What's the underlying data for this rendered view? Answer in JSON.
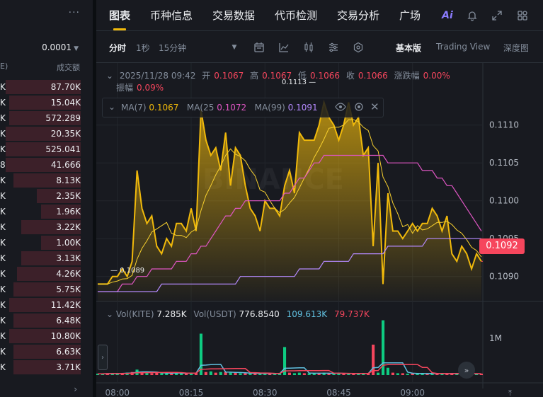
{
  "orderbook": {
    "precision": "0.0001",
    "header_left": "E)",
    "header_right": "成交额",
    "rows": [
      {
        "left": "K",
        "right": "87.70K",
        "bar": 0.95
      },
      {
        "left": "K",
        "right": "15.04K",
        "bar": 0.9
      },
      {
        "left": "K",
        "right": "572.289",
        "bar": 0.9
      },
      {
        "left": "K",
        "right": "20.35K",
        "bar": 0.95
      },
      {
        "left": "K",
        "right": "525.041",
        "bar": 0.95
      },
      {
        "left": "8",
        "right": "41.666",
        "bar": 0.95
      },
      {
        "left": "K",
        "right": "8.13K",
        "bar": 0.85
      },
      {
        "left": "K",
        "right": "2.35K",
        "bar": 0.55
      },
      {
        "left": "K",
        "right": "1.96K",
        "bar": 0.5
      },
      {
        "left": "K",
        "right": "3.22K",
        "bar": 0.75
      },
      {
        "left": "K",
        "right": "1.00K",
        "bar": 0.5
      },
      {
        "left": "K",
        "right": "3.13K",
        "bar": 0.75
      },
      {
        "left": "K",
        "right": "4.26K",
        "bar": 0.8
      },
      {
        "left": "K",
        "right": "5.75K",
        "bar": 0.85
      },
      {
        "left": "K",
        "right": "11.42K",
        "bar": 0.9
      },
      {
        "left": "K",
        "right": "6.48K",
        "bar": 0.85
      },
      {
        "left": "K",
        "right": "10.80K",
        "bar": 0.9
      },
      {
        "left": "K",
        "right": "6.63K",
        "bar": 0.85
      },
      {
        "left": "K",
        "right": "3.71K",
        "bar": 0.85
      }
    ]
  },
  "tabs": [
    "图表",
    "币种信息",
    "交易数据",
    "代币检测",
    "交易分析",
    "广场"
  ],
  "tab_icons": [
    "ai-icon",
    "bell-icon",
    "expand-icon",
    "grid-icon"
  ],
  "ai_label": "Ai",
  "toolbar": {
    "time_options": [
      "分时",
      "1秒",
      "15分钟"
    ],
    "views": [
      "基本版",
      "Trading View",
      "深度图"
    ]
  },
  "colors": {
    "accent": "#f0b90b",
    "up": "#0ecb81",
    "down": "#f6465d",
    "ma7": "#f0b90b",
    "ma25": "#e056c4",
    "ma99": "#b58aff",
    "vol_ma1": "#61c0e0",
    "vol_ma2": "#f6465d"
  },
  "ohlc": {
    "date": "2025/11/28 09:42",
    "open_label": "开",
    "open": "0.1067",
    "high_label": "高",
    "high": "0.1067",
    "low_label": "低",
    "low": "0.1066",
    "close_label": "收",
    "close": "0.1066",
    "change_label": "涨跌幅",
    "change": "0.00%",
    "amp_label": "振幅",
    "amp": "0.09%"
  },
  "ma": {
    "ma7_label": "MA(7)",
    "ma7": "0.1067",
    "ma25_label": "MA(25",
    "ma25": "0.1072",
    "ma99_label": "MA(99)",
    "ma99": "0.1091"
  },
  "last_price": "0.1092",
  "high_marker": "0.1113",
  "low_marker": "0.1089",
  "volume": {
    "vol_label": "Vol(KITE)",
    "vol": "7.285K",
    "vol_usdt_label": "Vol(USDT)",
    "vol_usdt": "776.8540",
    "ma1": "109.613K",
    "ma2": "79.737K",
    "axis_label": "1M"
  },
  "chart_data": {
    "type": "area",
    "y_ticks": [
      "0.1110",
      "0.1105",
      "0.1100",
      "0.1095",
      "0.1090"
    ],
    "ylim": [
      0.10867,
      0.11182
    ],
    "x_ticks": [
      "08:00",
      "08:15",
      "08:30",
      "08:45",
      "09:00"
    ],
    "price": [
      0.1089,
      0.1089,
      0.1089,
      0.109,
      0.109,
      0.1091,
      0.109,
      0.1092,
      0.1104,
      0.1099,
      0.1097,
      0.1098,
      0.1094,
      0.1093,
      0.1095,
      0.1094,
      0.1097,
      0.1097,
      0.1096,
      0.1099,
      0.1096,
      0.1112,
      0.1108,
      0.1106,
      0.1107,
      0.1104,
      0.1109,
      0.1102,
      0.1107,
      0.1106,
      0.1102,
      0.1099,
      0.1098,
      0.1096,
      0.11,
      0.1099,
      0.1099,
      0.1098,
      0.1102,
      0.1104,
      0.1101,
      0.1109,
      0.1108,
      0.1108,
      0.1108,
      0.111,
      0.1113,
      0.1111,
      0.111,
      0.1108,
      0.111,
      0.1113,
      0.111,
      0.1111,
      0.1106,
      0.1107,
      0.1094,
      0.1105,
      0.1089,
      0.1101,
      0.1096,
      0.1096,
      0.1095,
      0.1096,
      0.1097,
      0.1096,
      0.1097,
      0.1097,
      0.1099,
      0.1098,
      0.1096,
      0.1098,
      0.1093,
      0.1092,
      0.1094,
      0.1093,
      0.1091,
      0.1093,
      0.1092
    ],
    "ma25": [
      0.1088,
      0.1088,
      0.1088,
      0.1088,
      0.1088,
      0.1089,
      0.1089,
      0.1089,
      0.109,
      0.109,
      0.109,
      0.1091,
      0.1091,
      0.1091,
      0.1091,
      0.1091,
      0.1092,
      0.1092,
      0.1092,
      0.1093,
      0.1093,
      0.1094,
      0.1094,
      0.1095,
      0.1096,
      0.1097,
      0.1098,
      0.1098,
      0.1099,
      0.1099,
      0.11,
      0.11,
      0.11,
      0.11,
      0.11,
      0.11,
      0.11,
      0.11,
      0.1101,
      0.1101,
      0.1102,
      0.1103,
      0.1103,
      0.1104,
      0.1105,
      0.1105,
      0.1106,
      0.1106,
      0.1106,
      0.1106,
      0.1106,
      0.1106,
      0.1106,
      0.1106,
      0.1106,
      0.1106,
      0.1106,
      0.1106,
      0.1106,
      0.1105,
      0.1105,
      0.1105,
      0.1105,
      0.1105,
      0.1105,
      0.1105,
      0.1104,
      0.1104,
      0.1104,
      0.1103,
      0.1103,
      0.1102,
      0.1102,
      0.1101,
      0.11,
      0.1099,
      0.1098,
      0.1097,
      0.1096
    ],
    "ma99": [
      0.1088,
      0.1088,
      0.1088,
      0.1088,
      0.1088,
      0.1088,
      0.1088,
      0.1088,
      0.1088,
      0.1088,
      0.1088,
      0.1088,
      0.1088,
      0.1089,
      0.1089,
      0.1089,
      0.1089,
      0.1089,
      0.1089,
      0.1089,
      0.1089,
      0.1089,
      0.1089,
      0.1089,
      0.1089,
      0.1089,
      0.1089,
      0.1089,
      0.1089,
      0.109,
      0.109,
      0.109,
      0.109,
      0.109,
      0.109,
      0.109,
      0.109,
      0.109,
      0.109,
      0.109,
      0.109,
      0.1091,
      0.1091,
      0.1091,
      0.1091,
      0.1091,
      0.1092,
      0.1092,
      0.1092,
      0.1092,
      0.1092,
      0.1092,
      0.1093,
      0.1093,
      0.1093,
      0.1093,
      0.1093,
      0.1093,
      0.1093,
      0.1094,
      0.1094,
      0.1094,
      0.1094,
      0.1094,
      0.1094,
      0.1094,
      0.1094,
      0.1095,
      0.1095,
      0.1095,
      0.1095,
      0.1095,
      0.1095,
      0.1095,
      0.1095,
      0.1095,
      0.1095,
      0.1095,
      0.1095
    ],
    "volume": [
      {
        "v": 0.02,
        "up": true
      },
      {
        "v": 0.02,
        "up": true
      },
      {
        "v": 0.03,
        "up": false
      },
      {
        "v": 0.03,
        "up": true
      },
      {
        "v": 0.02,
        "up": true
      },
      {
        "v": 0.03,
        "up": false
      },
      {
        "v": 0.04,
        "up": true
      },
      {
        "v": 0.05,
        "up": false
      },
      {
        "v": 0.09,
        "up": true
      },
      {
        "v": 0.05,
        "up": false
      },
      {
        "v": 0.04,
        "up": true
      },
      {
        "v": 0.03,
        "up": false
      },
      {
        "v": 0.04,
        "up": false
      },
      {
        "v": 0.03,
        "up": true
      },
      {
        "v": 0.03,
        "up": true
      },
      {
        "v": 0.03,
        "up": false
      },
      {
        "v": 0.04,
        "up": true
      },
      {
        "v": 0.03,
        "up": true
      },
      {
        "v": 0.02,
        "up": false
      },
      {
        "v": 0.03,
        "up": true
      },
      {
        "v": 0.04,
        "up": false
      },
      {
        "v": 0.68,
        "up": true
      },
      {
        "v": 0.05,
        "up": false
      },
      {
        "v": 0.06,
        "up": true
      },
      {
        "v": 0.04,
        "up": false
      },
      {
        "v": 0.05,
        "up": true
      },
      {
        "v": 0.05,
        "up": false
      },
      {
        "v": 0.04,
        "up": true
      },
      {
        "v": 0.04,
        "up": false
      },
      {
        "v": 0.03,
        "up": true
      },
      {
        "v": 0.03,
        "up": false
      },
      {
        "v": 0.02,
        "up": true
      },
      {
        "v": 0.03,
        "up": false
      },
      {
        "v": 0.02,
        "up": true
      },
      {
        "v": 0.03,
        "up": true
      },
      {
        "v": 0.02,
        "up": false
      },
      {
        "v": 0.02,
        "up": true
      },
      {
        "v": 0.03,
        "up": true
      },
      {
        "v": 0.46,
        "up": true
      },
      {
        "v": 0.04,
        "up": false
      },
      {
        "v": 0.03,
        "up": true
      },
      {
        "v": 0.04,
        "up": true
      },
      {
        "v": 0.03,
        "up": false
      },
      {
        "v": 0.03,
        "up": true
      },
      {
        "v": 0.02,
        "up": true
      },
      {
        "v": 0.03,
        "up": false
      },
      {
        "v": 0.04,
        "up": true
      },
      {
        "v": 0.03,
        "up": false
      },
      {
        "v": 0.02,
        "up": true
      },
      {
        "v": 0.03,
        "up": true
      },
      {
        "v": 0.02,
        "up": false
      },
      {
        "v": 0.03,
        "up": true
      },
      {
        "v": 0.02,
        "up": false
      },
      {
        "v": 0.03,
        "up": true
      },
      {
        "v": 0.02,
        "up": true
      },
      {
        "v": 0.03,
        "up": false
      },
      {
        "v": 0.5,
        "up": false
      },
      {
        "v": 0.04,
        "up": true
      },
      {
        "v": 0.9,
        "up": true
      },
      {
        "v": 0.12,
        "up": true
      },
      {
        "v": 0.04,
        "up": false
      },
      {
        "v": 0.03,
        "up": true
      },
      {
        "v": 0.03,
        "up": false
      },
      {
        "v": 0.02,
        "up": true
      },
      {
        "v": 0.03,
        "up": false
      },
      {
        "v": 0.02,
        "up": true
      },
      {
        "v": 0.03,
        "up": true
      },
      {
        "v": 0.02,
        "up": false
      },
      {
        "v": 0.03,
        "up": true
      },
      {
        "v": 0.02,
        "up": false
      },
      {
        "v": 0.03,
        "up": true
      },
      {
        "v": 0.02,
        "up": false
      },
      {
        "v": 0.03,
        "up": false
      },
      {
        "v": 0.02,
        "up": true
      },
      {
        "v": 0.02,
        "up": false
      },
      {
        "v": 0.02,
        "up": true
      },
      {
        "v": 0.02,
        "up": false
      },
      {
        "v": 0.02,
        "up": true
      },
      {
        "v": 0.02,
        "up": false
      }
    ]
  }
}
